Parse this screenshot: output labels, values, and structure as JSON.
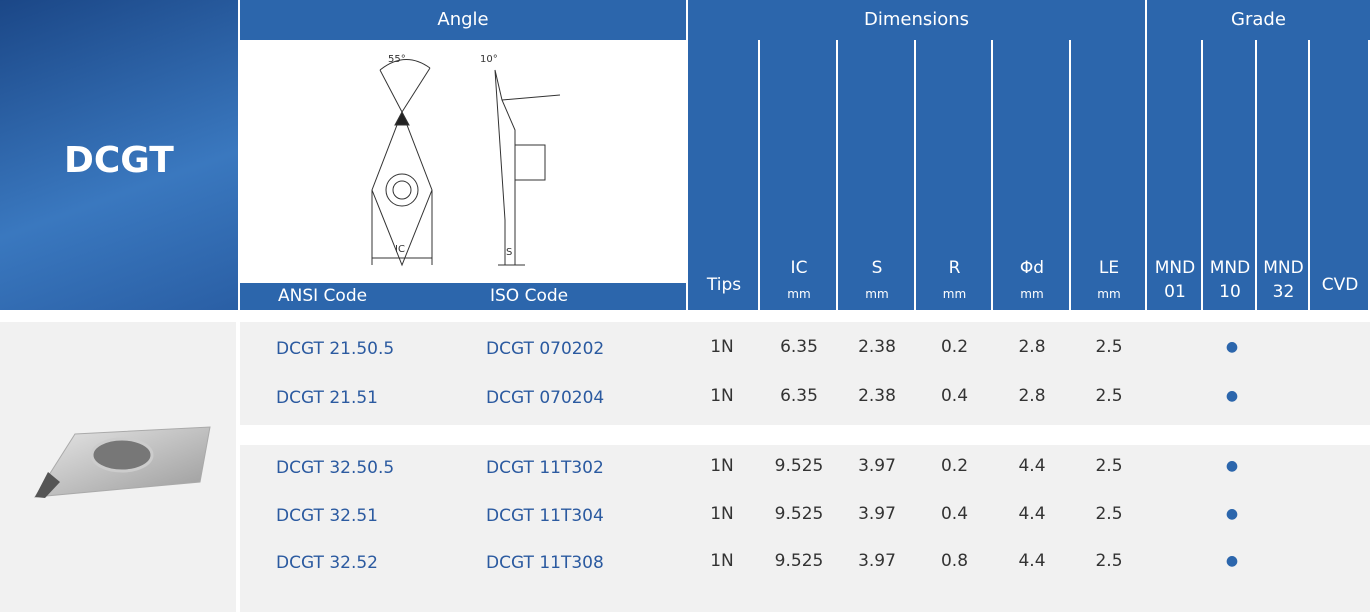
{
  "header": {
    "code": "DCGT",
    "angle": "Angle",
    "dimensions": "Dimensions",
    "grade": "Grade",
    "ansi": "ANSI Code",
    "iso": "ISO Code",
    "columns": [
      {
        "label": "Tips"
      },
      {
        "label": "IC",
        "unit": "mm"
      },
      {
        "label": "S",
        "unit": "mm"
      },
      {
        "label": "R",
        "unit": "mm"
      },
      {
        "label": "Φd",
        "unit": "mm"
      },
      {
        "label": "LE",
        "unit": "mm"
      }
    ],
    "grades": [
      {
        "label": "MND",
        "sub": "01"
      },
      {
        "label": "MND",
        "sub": "10"
      },
      {
        "label": "MND",
        "sub": "32"
      },
      {
        "label": "CVD"
      }
    ]
  },
  "diagram_labels": [
    "55°",
    "10°",
    "IC",
    "S"
  ],
  "groups": [
    {
      "rows": [
        {
          "ansi": "DCGT 21.50.5",
          "iso": "DCGT 070202",
          "values": [
            "1N",
            "6.35",
            "2.38",
            "0.2",
            "2.8",
            "2.5"
          ],
          "grade": "●"
        },
        {
          "ansi": "DCGT 21.51",
          "iso": "DCGT 070204",
          "values": [
            "1N",
            "6.35",
            "2.38",
            "0.4",
            "2.8",
            "2.5"
          ],
          "grade": "●"
        }
      ]
    },
    {
      "rows": [
        {
          "ansi": "DCGT 32.50.5",
          "iso": "DCGT 11T302",
          "values": [
            "1N",
            "9.525",
            "3.97",
            "0.2",
            "4.4",
            "2.5"
          ],
          "grade": "●"
        },
        {
          "ansi": "DCGT 32.51",
          "iso": "DCGT 11T304",
          "values": [
            "1N",
            "9.525",
            "3.97",
            "0.4",
            "4.4",
            "2.5"
          ],
          "grade": "●"
        },
        {
          "ansi": "DCGT 32.52",
          "iso": "DCGT 11T308",
          "values": [
            "1N",
            "9.525",
            "3.97",
            "0.8",
            "4.4",
            "2.5"
          ],
          "grade": "●"
        }
      ]
    }
  ]
}
